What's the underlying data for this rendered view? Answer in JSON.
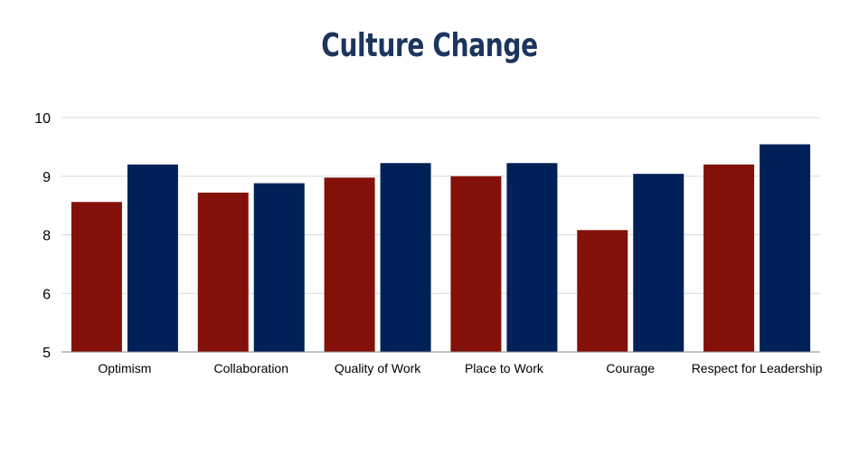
{
  "chart_data": {
    "type": "bar",
    "title": "Culture Change",
    "xlabel": "",
    "ylabel": "",
    "categories": [
      "Optimism",
      "Collaboration",
      "Quality of Work",
      "Place to Work",
      "Courage",
      "Respect for Leadership"
    ],
    "series": [
      {
        "color": "#831109",
        "values": [
          8.2,
          8.4,
          8.72,
          8.75,
          7.6,
          9.0
        ]
      },
      {
        "color": "#002157",
        "values": [
          9.0,
          8.6,
          9.03,
          9.03,
          8.8,
          9.43
        ]
      }
    ],
    "y_ticks": [
      "10",
      "9",
      "8",
      "6",
      "5"
    ],
    "ylim": [
      5,
      10
    ],
    "grid": true,
    "legend": "none"
  }
}
